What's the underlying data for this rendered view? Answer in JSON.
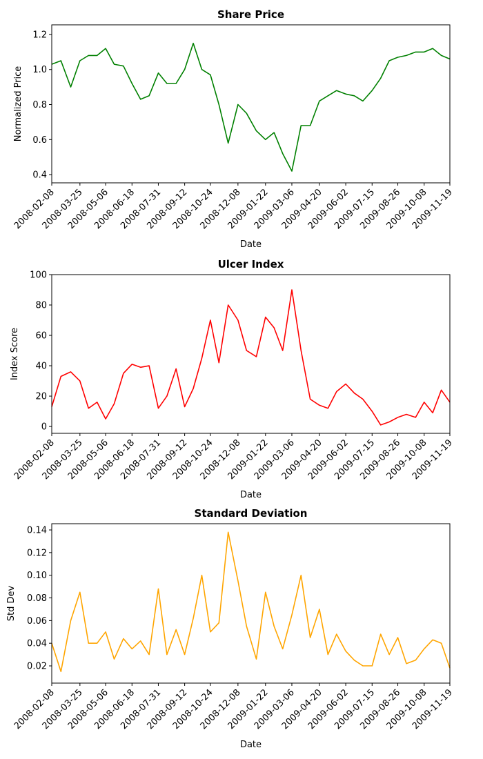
{
  "chart_data": [
    {
      "type": "line",
      "title": "Share Price",
      "x_label": "Date",
      "y_label": "Normalized Price",
      "color": "#008000",
      "x": [
        "2008-02-08",
        "2008-02-23",
        "2008-03-10",
        "2008-03-25",
        "2008-04-08",
        "2008-04-22",
        "2008-05-06",
        "2008-05-20",
        "2008-06-04",
        "2008-06-18",
        "2008-07-02",
        "2008-07-16",
        "2008-07-31",
        "2008-08-14",
        "2008-08-29",
        "2008-09-12",
        "2008-09-26",
        "2008-10-10",
        "2008-10-24",
        "2008-11-07",
        "2008-11-22",
        "2008-12-08",
        "2008-12-22",
        "2009-01-07",
        "2009-01-22",
        "2009-02-05",
        "2009-02-19",
        "2009-03-06",
        "2009-03-21",
        "2009-04-05",
        "2009-04-20",
        "2009-05-04",
        "2009-05-18",
        "2009-06-02",
        "2009-06-16",
        "2009-06-30",
        "2009-07-15",
        "2009-07-29",
        "2009-08-12",
        "2009-08-26",
        "2009-09-09",
        "2009-09-24",
        "2009-10-08",
        "2009-10-22",
        "2009-11-05",
        "2009-11-19"
      ],
      "values": [
        1.03,
        1.05,
        0.9,
        1.05,
        1.08,
        1.08,
        1.12,
        1.03,
        1.02,
        0.92,
        0.83,
        0.85,
        0.98,
        0.92,
        0.92,
        1.0,
        1.15,
        1.0,
        0.97,
        0.8,
        0.58,
        0.8,
        0.75,
        0.65,
        0.6,
        0.64,
        0.52,
        0.42,
        0.68,
        0.68,
        0.82,
        0.85,
        0.88,
        0.86,
        0.85,
        0.82,
        0.88,
        0.95,
        1.05,
        1.07,
        1.08,
        1.1,
        1.1,
        1.12,
        1.08,
        1.06
      ],
      "xlim": [
        "2008-02-08",
        "2009-11-19"
      ],
      "xticks": [
        "2008-02-08",
        "2008-03-25",
        "2008-05-06",
        "2008-06-18",
        "2008-07-31",
        "2008-09-12",
        "2008-10-24",
        "2008-12-08",
        "2009-01-22",
        "2009-03-06",
        "2009-04-20",
        "2009-06-02",
        "2009-07-15",
        "2009-08-26",
        "2009-10-08",
        "2009-11-19"
      ],
      "ylim": [
        0.353,
        1.255
      ],
      "yticks": [
        0.4,
        0.6,
        0.8,
        {
          "value": 1,
          "label": "1.0"
        },
        1.2
      ]
    },
    {
      "type": "line",
      "title": "Ulcer Index",
      "x_label": "Date",
      "y_label": "Index Score",
      "color": "#ff0000",
      "x": [
        "2008-02-08",
        "2008-02-23",
        "2008-03-10",
        "2008-03-25",
        "2008-04-08",
        "2008-04-22",
        "2008-05-06",
        "2008-05-20",
        "2008-06-04",
        "2008-06-18",
        "2008-07-02",
        "2008-07-16",
        "2008-07-31",
        "2008-08-14",
        "2008-08-29",
        "2008-09-12",
        "2008-09-26",
        "2008-10-10",
        "2008-10-24",
        "2008-11-07",
        "2008-11-22",
        "2008-12-08",
        "2008-12-22",
        "2009-01-07",
        "2009-01-22",
        "2009-02-05",
        "2009-02-19",
        "2009-03-06",
        "2009-03-21",
        "2009-04-05",
        "2009-04-20",
        "2009-05-04",
        "2009-05-18",
        "2009-06-02",
        "2009-06-16",
        "2009-06-30",
        "2009-07-15",
        "2009-07-29",
        "2009-08-12",
        "2009-08-26",
        "2009-09-09",
        "2009-09-24",
        "2009-10-08",
        "2009-10-22",
        "2009-11-05",
        "2009-11-19"
      ],
      "values": [
        13,
        33,
        36,
        30,
        12,
        16,
        5,
        15,
        35,
        41,
        39,
        40,
        12,
        20,
        38,
        13,
        25,
        45,
        70,
        42,
        80,
        70,
        50,
        46,
        72,
        65,
        50,
        90,
        50,
        18,
        14,
        12,
        23,
        28,
        22,
        18,
        10,
        1,
        3,
        6,
        8,
        6,
        16,
        9,
        24,
        16
      ],
      "xlim": [
        "2008-02-08",
        "2009-11-19"
      ],
      "xticks": [
        "2008-02-08",
        "2008-03-25",
        "2008-05-06",
        "2008-06-18",
        "2008-07-31",
        "2008-09-12",
        "2008-10-24",
        "2008-12-08",
        "2009-01-22",
        "2009-03-06",
        "2009-04-20",
        "2009-06-02",
        "2009-07-15",
        "2009-08-26",
        "2009-10-08",
        "2009-11-19"
      ],
      "ylim": [
        -4.5,
        100
      ],
      "yticks": [
        0,
        20,
        40,
        60,
        80,
        100
      ]
    },
    {
      "type": "line",
      "title": "Standard Deviation",
      "x_label": "Date",
      "y_label": "Std Dev",
      "color": "#ffa500",
      "x": [
        "2008-02-08",
        "2008-02-23",
        "2008-03-10",
        "2008-03-25",
        "2008-04-08",
        "2008-04-22",
        "2008-05-06",
        "2008-05-20",
        "2008-06-04",
        "2008-06-18",
        "2008-07-02",
        "2008-07-16",
        "2008-07-31",
        "2008-08-14",
        "2008-08-29",
        "2008-09-12",
        "2008-09-26",
        "2008-10-10",
        "2008-10-24",
        "2008-11-07",
        "2008-11-22",
        "2008-12-08",
        "2008-12-22",
        "2009-01-07",
        "2009-01-22",
        "2009-02-05",
        "2009-02-19",
        "2009-03-06",
        "2009-03-21",
        "2009-04-05",
        "2009-04-20",
        "2009-05-04",
        "2009-05-18",
        "2009-06-02",
        "2009-06-16",
        "2009-06-30",
        "2009-07-15",
        "2009-07-29",
        "2009-08-12",
        "2009-08-26",
        "2009-09-09",
        "2009-09-24",
        "2009-10-08",
        "2009-10-22",
        "2009-11-05",
        "2009-11-19"
      ],
      "values": [
        0.04,
        0.015,
        0.06,
        0.085,
        0.04,
        0.04,
        0.05,
        0.026,
        0.044,
        0.035,
        0.042,
        0.03,
        0.088,
        0.03,
        0.052,
        0.03,
        0.062,
        0.1,
        0.05,
        0.058,
        0.138,
        0.095,
        0.055,
        0.026,
        0.085,
        0.055,
        0.035,
        0.065,
        0.1,
        0.045,
        0.07,
        0.03,
        0.048,
        0.033,
        0.025,
        0.02,
        0.02,
        0.048,
        0.03,
        0.045,
        0.022,
        0.025,
        0.035,
        0.043,
        0.04,
        0.018
      ],
      "xlim": [
        "2008-02-08",
        "2009-11-19"
      ],
      "xticks": [
        "2008-02-08",
        "2008-03-25",
        "2008-05-06",
        "2008-06-18",
        "2008-07-31",
        "2008-09-12",
        "2008-10-24",
        "2008-12-08",
        "2009-01-22",
        "2009-03-06",
        "2009-04-20",
        "2009-06-02",
        "2009-07-15",
        "2009-08-26",
        "2009-10-08",
        "2009-11-19"
      ],
      "ylim": [
        0.0048,
        0.1455
      ],
      "yticks": [
        0.02,
        0.04,
        0.06,
        0.08,
        {
          "value": 0.1,
          "label": "0.10"
        },
        0.12,
        0.14
      ]
    }
  ]
}
